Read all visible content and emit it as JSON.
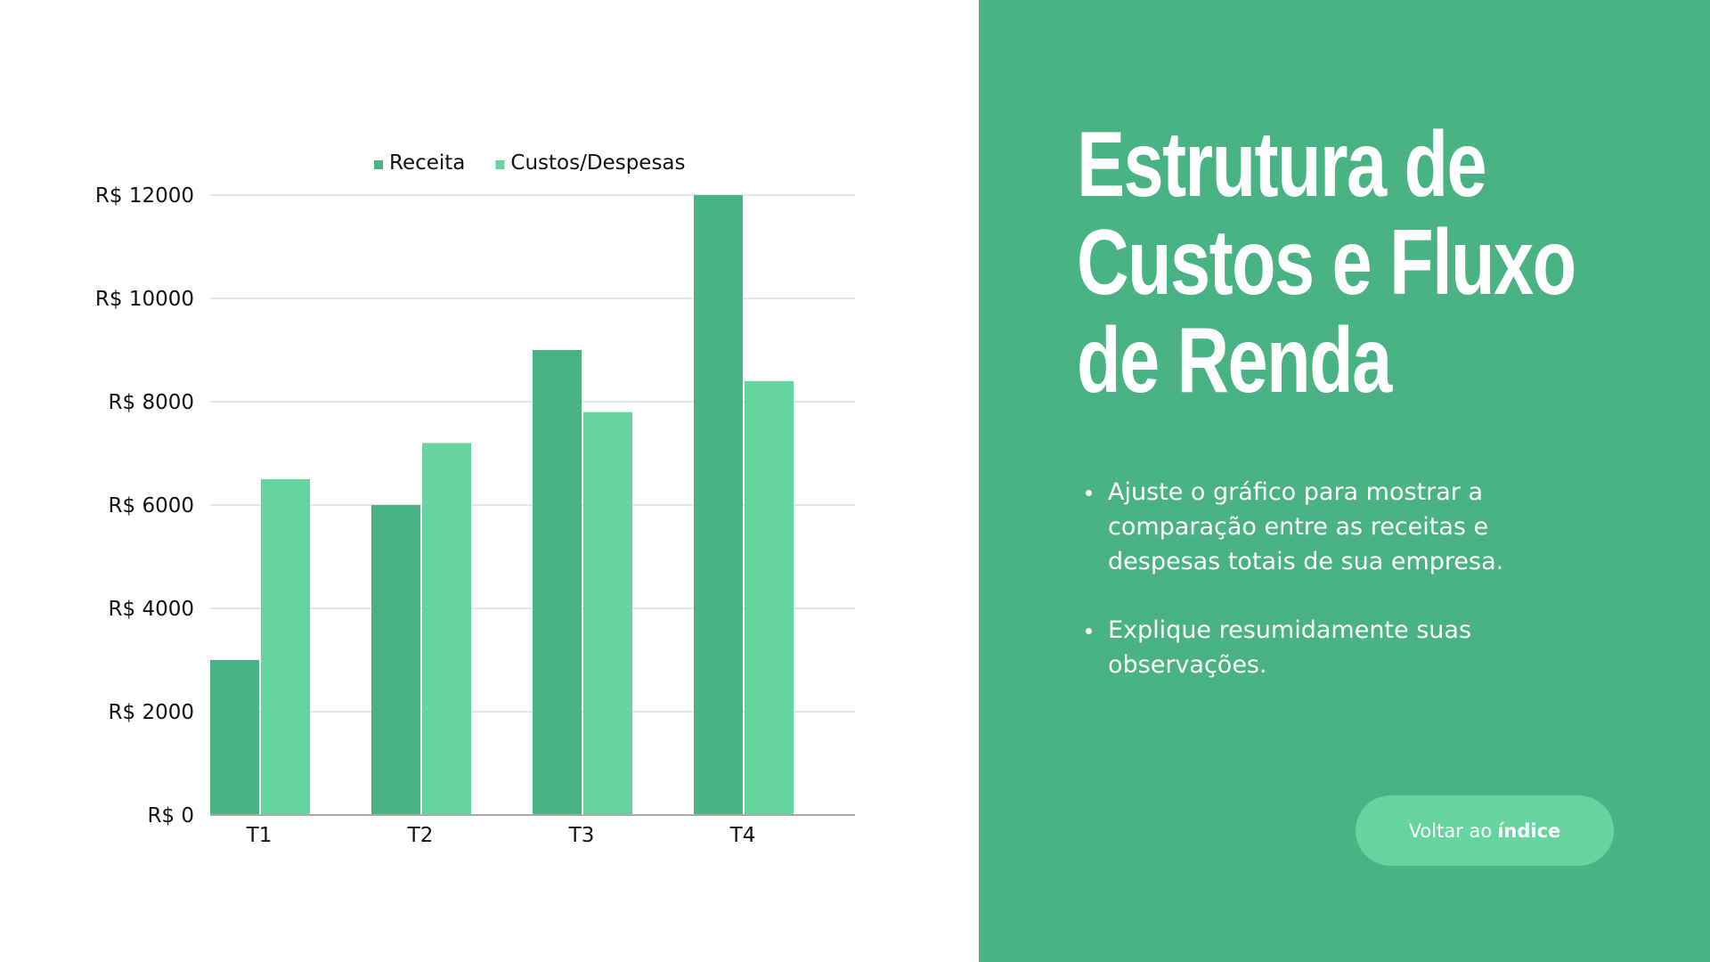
{
  "chart_data": {
    "type": "bar",
    "categories": [
      "T1",
      "T2",
      "T3",
      "T4"
    ],
    "series": [
      {
        "name": "Receita",
        "values": [
          3000,
          6000,
          9000,
          12000
        ],
        "color": "#4ab383"
      },
      {
        "name": "Custos/Despesas",
        "values": [
          6500,
          7200,
          7800,
          8400
        ],
        "color": "#66d49f"
      }
    ],
    "ylim": [
      0,
      12000
    ],
    "yticks": [
      0,
      2000,
      4000,
      6000,
      8000,
      10000,
      12000
    ],
    "ytick_labels": [
      "R$ 0",
      "R$ 2000",
      "R$ 4000",
      "R$ 6000",
      "R$ 8000",
      "R$ 10000",
      "R$ 12000"
    ],
    "grid": true,
    "legend_position": "top"
  },
  "panel": {
    "title_lines": [
      "Estrutura de",
      "Custos e Fluxo",
      "de Renda"
    ],
    "bullets": [
      "Ajuste o gráfico para mostrar a comparação entre as receitas e despesas totais de sua empresa.",
      "Explique resumidamente suas observações."
    ],
    "back_button": {
      "prefix": "Voltar ao",
      "emphasis": "índice"
    }
  },
  "colors": {
    "panel_bg": "#4ab383",
    "button_bg": "#66d49f",
    "grid": "#dddddd",
    "axis": "#aaaaaa"
  }
}
